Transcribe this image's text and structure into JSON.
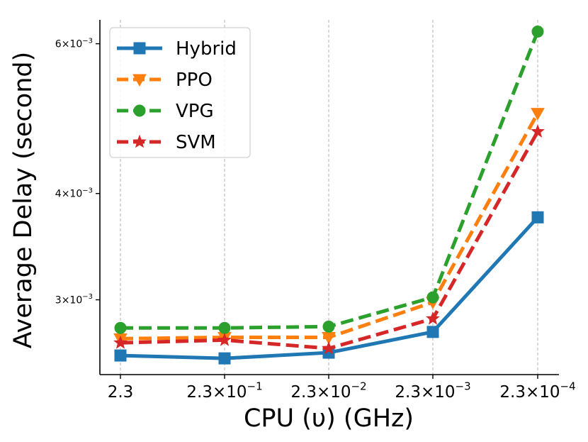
{
  "chart_data": {
    "type": "line",
    "title": "",
    "xlabel": "CPU (υ) (GHz)",
    "ylabel": "Average Delay (second)",
    "yscale": "log",
    "ylim": [
      0.00245,
      0.0064
    ],
    "grid": "vertical-dashed",
    "categories": [
      {
        "base": "2.3",
        "exp": ""
      },
      {
        "base": "2.3×10",
        "exp": "−1"
      },
      {
        "base": "2.3×10",
        "exp": "−2"
      },
      {
        "base": "2.3×10",
        "exp": "−3"
      },
      {
        "base": "2.3×10",
        "exp": "−4"
      }
    ],
    "yticks": [
      {
        "value": 0.003,
        "base": "3×10",
        "exp": "−3"
      },
      {
        "value": 0.004,
        "base": "4×10",
        "exp": "−3"
      },
      {
        "value": 0.006,
        "base": "6×10",
        "exp": "−3"
      }
    ],
    "legend_position": "top-left",
    "series": [
      {
        "name": "Hybrid",
        "color": "#1f77b4",
        "marker": "square",
        "dash": "solid",
        "values": [
          0.00258,
          0.00256,
          0.0026,
          0.00275,
          0.00375
        ]
      },
      {
        "name": "PPO",
        "color": "#ff7f0e",
        "marker": "triangle-down",
        "dash": "dashed",
        "values": [
          0.0027,
          0.00271,
          0.00271,
          0.00298,
          0.00497
        ]
      },
      {
        "name": "VPG",
        "color": "#2ca02c",
        "marker": "circle",
        "dash": "dashed",
        "values": [
          0.00278,
          0.00278,
          0.00279,
          0.00302,
          0.0062
        ]
      },
      {
        "name": "SVM",
        "color": "#d62728",
        "marker": "star",
        "dash": "dashed",
        "values": [
          0.00267,
          0.00269,
          0.00263,
          0.00285,
          0.00473
        ]
      }
    ]
  }
}
